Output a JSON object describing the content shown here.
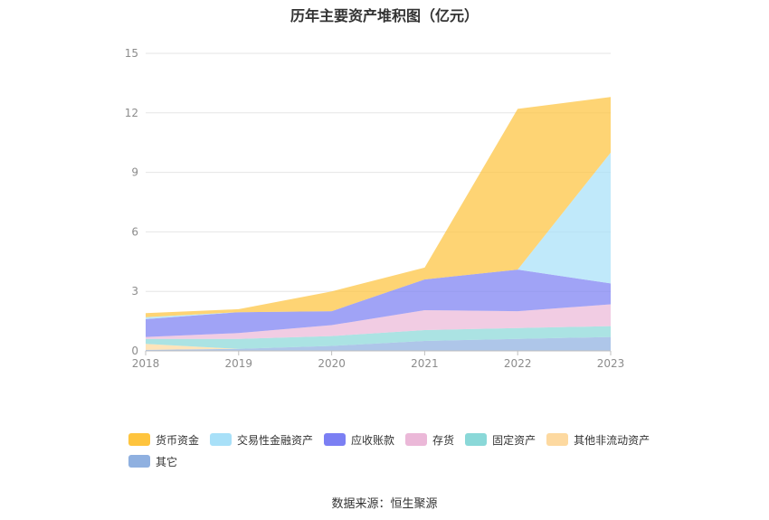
{
  "title": "历年主要资产堆积图（亿元）",
  "source": "数据来源：恒生聚源",
  "chart_data": {
    "type": "area",
    "stacked": true,
    "categories": [
      "2018",
      "2019",
      "2020",
      "2021",
      "2022",
      "2023"
    ],
    "ylim": [
      0,
      15
    ],
    "yticks": [
      0,
      3,
      6,
      9,
      12,
      15
    ],
    "grid": true,
    "legend_position": "bottom",
    "series": [
      {
        "name": "其它",
        "color": "#8fb0e0",
        "values": [
          0.05,
          0.1,
          0.25,
          0.5,
          0.6,
          0.7
        ]
      },
      {
        "name": "其他非流动资产",
        "color": "#fdd9a0",
        "values": [
          0.3,
          0.0,
          0.0,
          0.0,
          0.0,
          0.0
        ]
      },
      {
        "name": "固定资产",
        "color": "#8ad8d8",
        "values": [
          0.25,
          0.5,
          0.5,
          0.55,
          0.55,
          0.55
        ]
      },
      {
        "name": "存货",
        "color": "#ebb8d8",
        "values": [
          0.1,
          0.3,
          0.55,
          1.0,
          0.85,
          1.1
        ]
      },
      {
        "name": "应收账款",
        "color": "#7b7ff3",
        "values": [
          0.9,
          1.05,
          0.7,
          1.55,
          2.1,
          1.05
        ]
      },
      {
        "name": "交易性金融资产",
        "color": "#a8e0f8",
        "values": [
          0.1,
          0.0,
          0.0,
          0.0,
          0.0,
          6.6
        ]
      },
      {
        "name": "货币资金",
        "color": "#fec43e",
        "values": [
          0.2,
          0.15,
          1.0,
          0.6,
          8.1,
          2.8
        ]
      }
    ],
    "legend_order": [
      "货币资金",
      "交易性金融资产",
      "应收账款",
      "存货",
      "固定资产",
      "其他非流动资产",
      "其它"
    ]
  }
}
